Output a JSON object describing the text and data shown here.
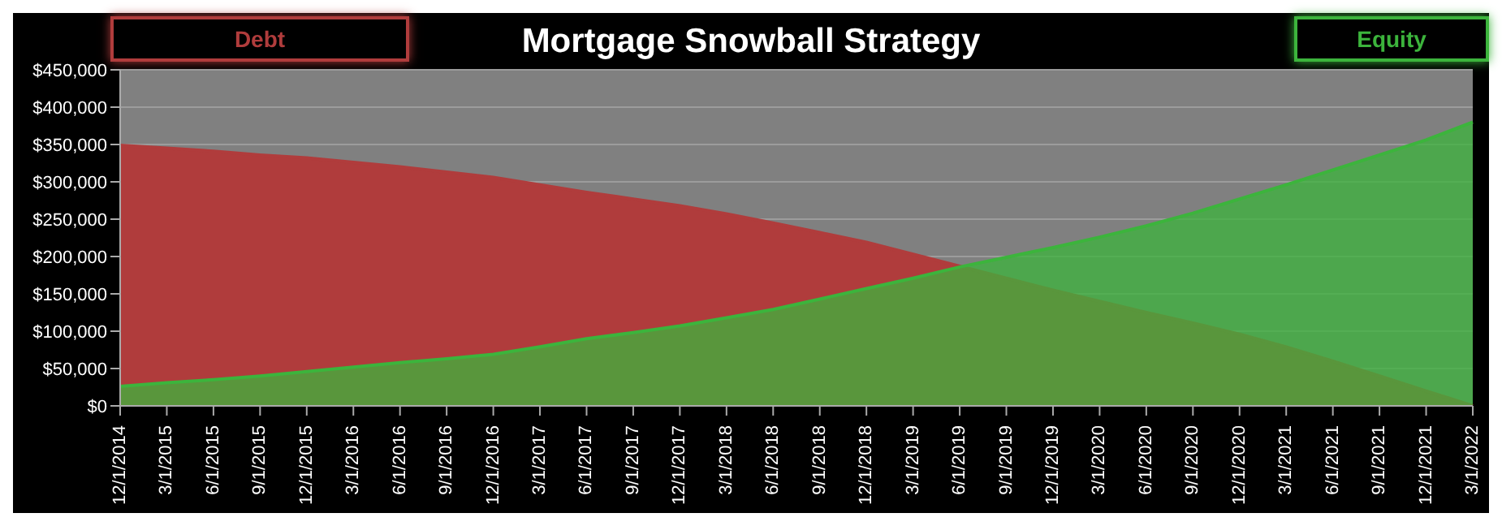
{
  "chart_data": {
    "type": "area",
    "title": "Mortgage Snowball Strategy",
    "categories": [
      "12/1/2014",
      "3/1/2015",
      "6/1/2015",
      "9/1/2015",
      "12/1/2015",
      "3/1/2016",
      "6/1/2016",
      "9/1/2016",
      "12/1/2016",
      "3/1/2017",
      "6/1/2017",
      "9/1/2017",
      "12/1/2017",
      "3/1/2018",
      "6/1/2018",
      "9/1/2018",
      "12/1/2018",
      "3/1/2019",
      "6/1/2019",
      "9/1/2019",
      "12/1/2019",
      "3/1/2020",
      "6/1/2020",
      "9/1/2020",
      "12/1/2020",
      "3/1/2021",
      "6/1/2021",
      "9/1/2021",
      "12/1/2021",
      "3/1/2022"
    ],
    "series": [
      {
        "name": "Debt",
        "color": "#b03c3c",
        "values": [
          349000,
          345000,
          341000,
          336000,
          332000,
          326000,
          320000,
          313000,
          306000,
          296000,
          286000,
          277000,
          268000,
          257000,
          245000,
          232000,
          219000,
          203000,
          187000,
          171000,
          155000,
          140000,
          125000,
          111000,
          96000,
          79000,
          60000,
          40000,
          20000,
          0
        ]
      },
      {
        "name": "Equity",
        "color": "#3cb43c",
        "values": [
          26000,
          31000,
          35000,
          40000,
          46000,
          52000,
          58000,
          63000,
          69000,
          79000,
          90000,
          98000,
          107000,
          118000,
          129000,
          143000,
          157000,
          171000,
          186000,
          199000,
          212000,
          226000,
          241000,
          258000,
          277000,
          296000,
          316000,
          336000,
          356000,
          380000
        ]
      }
    ],
    "ylim": [
      0,
      450000
    ],
    "yticks": [
      {
        "value": 0,
        "label": "$0"
      },
      {
        "value": 50000,
        "label": "$50,000"
      },
      {
        "value": 100000,
        "label": "$100,000"
      },
      {
        "value": 150000,
        "label": "$150,000"
      },
      {
        "value": 200000,
        "label": "$200,000"
      },
      {
        "value": 250000,
        "label": "$250,000"
      },
      {
        "value": 300000,
        "label": "$300,000"
      },
      {
        "value": 350000,
        "label": "$350,000"
      },
      {
        "value": 400000,
        "label": "$400,000"
      },
      {
        "value": 450000,
        "label": "$450,000"
      }
    ],
    "grid": "y",
    "legend": "top"
  }
}
